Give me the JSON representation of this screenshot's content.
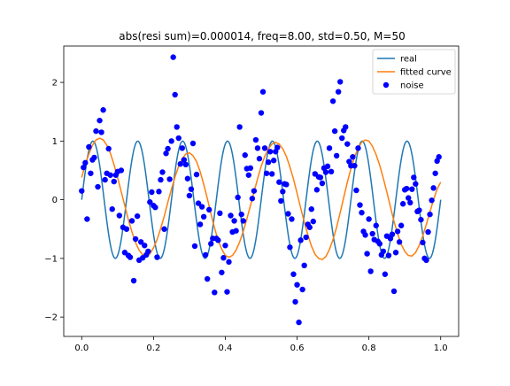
{
  "chart_data": {
    "type": "scatter",
    "title": "abs(resi sum)=0.000014, freq=8.00, std=0.50, M=50",
    "xlabel": "",
    "ylabel": "",
    "xlim": [
      -0.05,
      1.05
    ],
    "ylim": [
      -2.33,
      2.62
    ],
    "x_ticks": [
      0.0,
      0.2,
      0.4,
      0.6,
      0.8,
      1.0
    ],
    "x_tick_labels": [
      "0.0",
      "0.2",
      "0.4",
      "0.6",
      "0.8",
      "1.0"
    ],
    "y_ticks": [
      -2,
      -1,
      0,
      1,
      2
    ],
    "y_tick_labels": [
      "−2",
      "−1",
      "0",
      "1",
      "2"
    ],
    "grid": false,
    "legend_position": "top-right",
    "series": [
      {
        "name": "real",
        "type": "line",
        "color": "#1f77b4",
        "function": "sin(2*pi*freq*x)",
        "freq": 8,
        "x_range": [
          0,
          1
        ]
      },
      {
        "name": "fitted curve",
        "type": "line",
        "color": "#ff7f0e",
        "x": [
          0.0,
          0.01,
          0.02,
          0.03,
          0.04,
          0.05,
          0.06,
          0.07,
          0.08,
          0.09,
          0.1,
          0.11,
          0.12,
          0.13,
          0.14,
          0.15,
          0.16,
          0.17,
          0.18,
          0.19,
          0.2,
          0.21,
          0.22,
          0.23,
          0.24,
          0.25,
          0.26,
          0.27,
          0.28,
          0.29,
          0.3,
          0.31,
          0.32,
          0.33,
          0.34,
          0.35,
          0.36,
          0.37,
          0.38,
          0.39,
          0.4,
          0.41,
          0.42,
          0.43,
          0.44,
          0.45,
          0.46,
          0.47,
          0.48,
          0.49,
          0.5,
          0.51,
          0.52,
          0.53,
          0.54,
          0.55,
          0.56,
          0.57,
          0.58,
          0.59,
          0.6,
          0.61,
          0.62,
          0.63,
          0.64,
          0.65,
          0.66,
          0.67,
          0.68,
          0.69,
          0.7,
          0.71,
          0.72,
          0.73,
          0.74,
          0.75,
          0.76,
          0.77,
          0.78,
          0.79,
          0.8,
          0.81,
          0.82,
          0.83,
          0.84,
          0.85,
          0.86,
          0.87,
          0.88,
          0.89,
          0.9,
          0.91,
          0.92,
          0.93,
          0.94,
          0.95,
          0.96,
          0.97,
          0.98,
          0.99,
          1.0
        ],
        "y": [
          0.38,
          0.6,
          0.78,
          0.93,
          1.02,
          1.05,
          1.02,
          0.93,
          0.79,
          0.6,
          0.38,
          0.14,
          -0.1,
          -0.34,
          -0.55,
          -0.73,
          -0.86,
          -0.94,
          -0.96,
          -0.92,
          -0.82,
          -0.68,
          -0.49,
          -0.28,
          -0.04,
          0.18,
          0.39,
          0.57,
          0.7,
          0.78,
          0.8,
          0.75,
          0.65,
          0.48,
          0.26,
          0.02,
          -0.24,
          -0.48,
          -0.69,
          -0.84,
          -0.95,
          -0.98,
          -0.95,
          -0.86,
          -0.72,
          -0.54,
          -0.33,
          -0.1,
          0.13,
          0.36,
          0.57,
          0.74,
          0.87,
          0.95,
          0.98,
          0.95,
          0.87,
          0.74,
          0.56,
          0.35,
          0.11,
          -0.14,
          -0.38,
          -0.6,
          -0.79,
          -0.93,
          -1.0,
          -1.02,
          -0.97,
          -0.85,
          -0.68,
          -0.47,
          -0.22,
          0.04,
          0.3,
          0.53,
          0.73,
          0.88,
          0.98,
          1.02,
          1.0,
          0.91,
          0.77,
          0.59,
          0.37,
          0.13,
          -0.12,
          -0.37,
          -0.58,
          -0.76,
          -0.88,
          -0.95,
          -0.96,
          -0.9,
          -0.78,
          -0.62,
          -0.42,
          -0.21,
          0.0,
          0.18,
          0.3
        ]
      },
      {
        "name": "noise",
        "type": "scatter",
        "color": "#0000ff",
        "x": [
          0.0,
          0.005,
          0.01,
          0.015,
          0.02,
          0.025,
          0.03,
          0.035,
          0.04,
          0.045,
          0.05,
          0.055,
          0.06,
          0.065,
          0.07,
          0.075,
          0.08,
          0.085,
          0.09,
          0.095,
          0.1,
          0.105,
          0.11,
          0.115,
          0.12,
          0.125,
          0.13,
          0.135,
          0.14,
          0.145,
          0.15,
          0.155,
          0.16,
          0.165,
          0.17,
          0.175,
          0.18,
          0.185,
          0.19,
          0.195,
          0.2,
          0.205,
          0.21,
          0.215,
          0.22,
          0.225,
          0.23,
          0.235,
          0.24,
          0.245,
          0.25,
          0.255,
          0.26,
          0.265,
          0.27,
          0.275,
          0.28,
          0.285,
          0.29,
          0.295,
          0.3,
          0.305,
          0.31,
          0.315,
          0.32,
          0.325,
          0.33,
          0.335,
          0.34,
          0.345,
          0.35,
          0.355,
          0.36,
          0.365,
          0.37,
          0.375,
          0.38,
          0.385,
          0.39,
          0.395,
          0.4,
          0.405,
          0.41,
          0.415,
          0.42,
          0.425,
          0.43,
          0.435,
          0.44,
          0.445,
          0.45,
          0.455,
          0.46,
          0.465,
          0.47,
          0.475,
          0.48,
          0.485,
          0.49,
          0.495,
          0.5,
          0.505,
          0.51,
          0.515,
          0.52,
          0.525,
          0.53,
          0.535,
          0.54,
          0.545,
          0.55,
          0.555,
          0.56,
          0.565,
          0.57,
          0.575,
          0.58,
          0.585,
          0.59,
          0.595,
          0.6,
          0.605,
          0.61,
          0.615,
          0.62,
          0.625,
          0.63,
          0.635,
          0.64,
          0.645,
          0.65,
          0.655,
          0.66,
          0.665,
          0.67,
          0.675,
          0.68,
          0.685,
          0.69,
          0.695,
          0.7,
          0.705,
          0.71,
          0.715,
          0.72,
          0.725,
          0.73,
          0.735,
          0.74,
          0.745,
          0.75,
          0.755,
          0.76,
          0.765,
          0.77,
          0.775,
          0.78,
          0.785,
          0.79,
          0.795,
          0.8,
          0.805,
          0.81,
          0.815,
          0.82,
          0.825,
          0.83,
          0.835,
          0.84,
          0.845,
          0.85,
          0.855,
          0.86,
          0.865,
          0.87,
          0.875,
          0.88,
          0.885,
          0.89,
          0.895,
          0.9,
          0.905,
          0.91,
          0.915,
          0.92,
          0.925,
          0.93,
          0.935,
          0.94,
          0.945,
          0.95,
          0.955,
          0.96,
          0.965,
          0.97,
          0.975,
          0.98,
          0.985,
          0.99,
          0.995
        ],
        "y": [
          0.15,
          0.55,
          0.63,
          -0.33,
          0.9,
          0.45,
          0.68,
          0.72,
          1.17,
          0.22,
          1.35,
          1.15,
          1.53,
          0.34,
          0.45,
          0.87,
          0.42,
          -0.16,
          0.31,
          0.42,
          0.48,
          -0.27,
          0.5,
          -0.47,
          -0.9,
          -0.5,
          -0.95,
          -0.98,
          -0.36,
          -1.38,
          -0.67,
          -0.28,
          -1.03,
          -0.72,
          -0.99,
          -0.78,
          -0.94,
          -0.88,
          -0.04,
          0.13,
          -0.1,
          -0.13,
          -0.98,
          0.14,
          0.34,
          0.47,
          -0.5,
          0.79,
          0.87,
          0.35,
          1.0,
          2.43,
          1.79,
          1.24,
          1.05,
          0.61,
          0.88,
          0.68,
          0.6,
          0.36,
          0.07,
          0.18,
          0.96,
          -0.79,
          0.43,
          -0.06,
          -0.42,
          -0.12,
          -0.29,
          -0.94,
          -1.35,
          -0.17,
          -0.75,
          -0.66,
          -1.58,
          -0.66,
          -0.69,
          -0.23,
          -1.24,
          -0.99,
          -0.78,
          -1.57,
          -1.06,
          -0.27,
          -0.55,
          -0.36,
          -0.53,
          0.04,
          1.24,
          -0.25,
          -0.36,
          0.76,
          0.53,
          0.42,
          0.54,
          0.02,
          0.15,
          1.02,
          0.88,
          0.7,
          1.48,
          1.84,
          0.88,
          0.45,
          0.64,
          0.82,
          0.44,
          0.67,
          0.82,
          0.89,
          0.3,
          -0.02,
          0.14,
          0.27,
          0.26,
          -0.24,
          -0.81,
          -0.33,
          -1.27,
          -1.74,
          -1.45,
          -2.09,
          -0.69,
          -1.53,
          -1.12,
          -0.64,
          -0.42,
          -0.47,
          -0.16,
          -0.37,
          0.44,
          0.17,
          0.39,
          0.38,
          0.28,
          0.54,
          0.47,
          0.57,
          0.88,
          0.48,
          1.68,
          1.17,
          0.75,
          1.84,
          2.01,
          1.05,
          1.18,
          1.24,
          0.95,
          0.65,
          0.58,
          0.73,
          0.58,
          0.16,
          0.88,
          -0.09,
          -0.22,
          -0.54,
          -0.6,
          -0.92,
          -0.33,
          -1.22,
          -0.58,
          -0.68,
          -0.44,
          -0.71,
          -0.75,
          -0.94,
          -0.88,
          -1.27,
          -0.62,
          -0.95,
          -0.66,
          -0.59,
          -1.56,
          -0.9,
          -0.54,
          -0.72,
          -0.44,
          -0.07,
          0.17,
          0.19,
          0.03,
          -0.05,
          0.18,
          0.38,
          0.27,
          -0.2,
          -0.18,
          -0.34,
          -0.73,
          -1.0,
          -1.03,
          -0.55,
          -0.25,
          -0.01,
          0.2,
          0.45,
          0.66,
          0.73
        ]
      }
    ]
  }
}
